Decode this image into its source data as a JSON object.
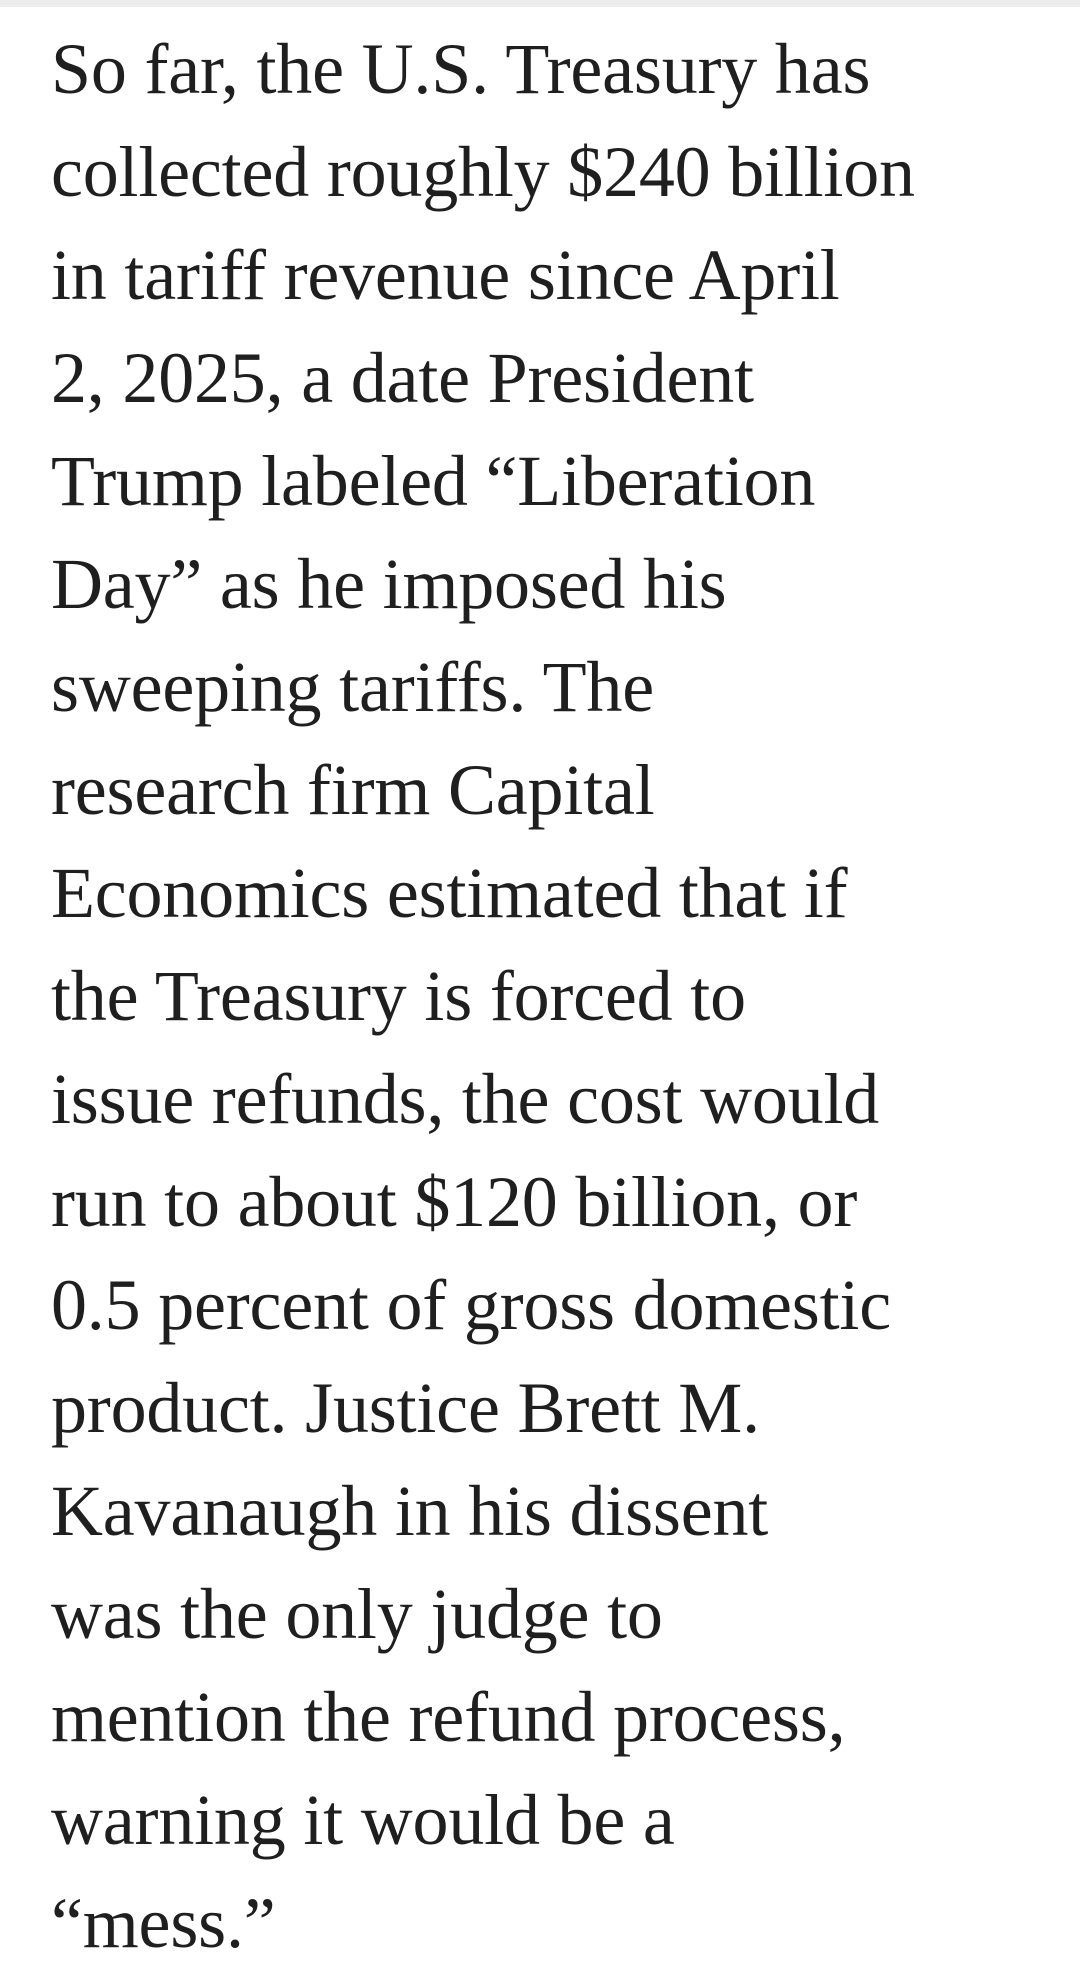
{
  "article": {
    "lines": [
      "So far, the U.S. Treasury has",
      "collected roughly $240 billion",
      "in tariff revenue since April",
      "2, 2025, a date President",
      "Trump labeled “Liberation",
      "Day” as he imposed his",
      "sweeping tariffs. The",
      "research firm Capital",
      "Economics estimated that if",
      "the Treasury is forced to",
      "issue refunds, the cost would",
      "run to about $120 billion, or",
      "0.5 percent of gross domestic",
      "product. Justice Brett M.",
      "Kavanaugh in his dissent",
      "was the only judge to",
      "mention the refund process,",
      "warning it would be a",
      "“mess.”"
    ]
  },
  "colors": {
    "text": "#1f1f1f",
    "background": "#ffffff"
  }
}
